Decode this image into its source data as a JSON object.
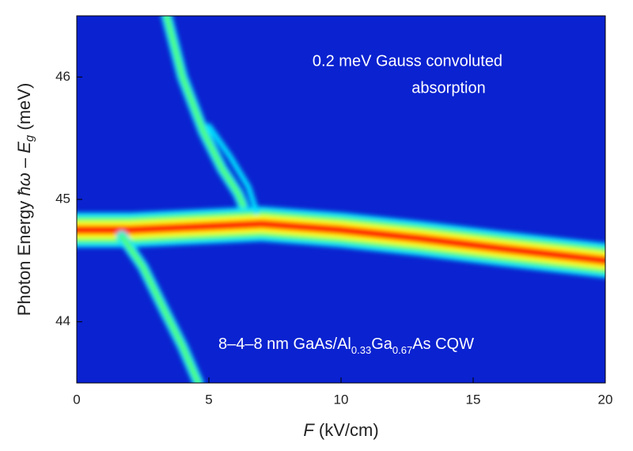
{
  "chart_data": {
    "type": "heatmap",
    "annotations": [
      [
        "0.2 meV Gauss convoluted",
        "absorption"
      ],
      [
        "8–4–8 nm GaAs/Al",
        "0.33",
        "Ga",
        "0.67",
        "As  CQW"
      ]
    ],
    "x_label": [
      "F",
      " (kV/cm)"
    ],
    "y_label": [
      "Photon Energy ",
      "ħω",
      " – ",
      "E",
      "g",
      " (meV)"
    ],
    "xlim": [
      0,
      20
    ],
    "xticks": [
      0,
      5,
      10,
      15,
      20
    ],
    "ylim": [
      43.5,
      46.5
    ],
    "yticks": [
      44,
      45,
      46
    ],
    "colormap": [
      "#0a22d0",
      "#00e0ff",
      "#50ff70",
      "#ffff00",
      "#ff1a00"
    ],
    "ridges": [
      {
        "x": [
          0,
          2,
          5,
          7,
          10,
          13,
          16,
          20
        ],
        "y": [
          44.75,
          44.75,
          44.78,
          44.8,
          44.75,
          44.68,
          44.6,
          44.5
        ],
        "peak": 4
      },
      {
        "x": [
          3.4,
          4,
          4.8,
          5.5,
          6.1,
          6.3
        ],
        "y": [
          46.5,
          46.0,
          45.55,
          45.25,
          45.05,
          44.95
        ],
        "peak": 2
      },
      {
        "x": [
          5.0,
          5.8,
          6.5,
          6.8
        ],
        "y": [
          45.6,
          45.35,
          45.1,
          44.9
        ],
        "peak": 1
      },
      {
        "x": [
          1.7,
          2.5,
          3.3,
          4.0,
          4.6
        ],
        "y": [
          44.7,
          44.45,
          44.1,
          43.8,
          43.5
        ],
        "peak": 2
      }
    ]
  }
}
